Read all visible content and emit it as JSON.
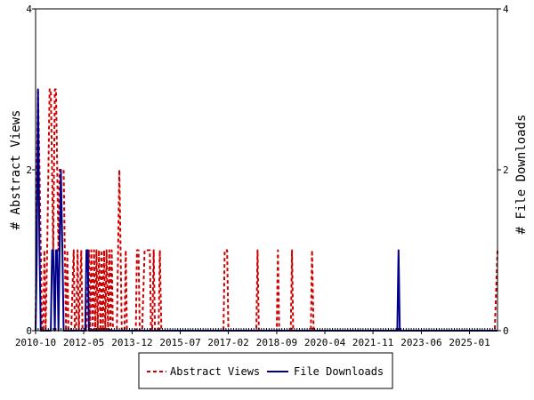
{
  "chart_data": {
    "type": "line",
    "y_left_label": "# Abstract Views",
    "y_right_label": "# File Downloads",
    "ylim": [
      0,
      4
    ],
    "y_ticks": [
      "0",
      "2",
      "4"
    ],
    "y_right_ticks": [
      "0",
      "2",
      "4"
    ],
    "x_range": [
      2010.75,
      2025.92
    ],
    "x_ticks": [
      {
        "x": 2010.75,
        "label": "2010-10"
      },
      {
        "x": 2012.33,
        "label": "2012-05"
      },
      {
        "x": 2013.92,
        "label": "2013-12"
      },
      {
        "x": 2015.5,
        "label": "2015-07"
      },
      {
        "x": 2017.08,
        "label": "2017-02"
      },
      {
        "x": 2018.67,
        "label": "2018-09"
      },
      {
        "x": 2020.25,
        "label": "2020-04"
      },
      {
        "x": 2021.83,
        "label": "2021-11"
      },
      {
        "x": 2023.42,
        "label": "2023-06"
      },
      {
        "x": 2025.0,
        "label": "2025-01"
      }
    ],
    "grid": false,
    "legend_placement": "bottom-center",
    "series": [
      {
        "name": "Abstract Views",
        "color": "#cc0000",
        "style": "dashed",
        "values": [
          [
            2010.75,
            0
          ],
          [
            2010.79,
            2
          ],
          [
            2010.83,
            3
          ],
          [
            2010.88,
            2
          ],
          [
            2010.92,
            1
          ],
          [
            2010.96,
            0
          ],
          [
            2011.0,
            0
          ],
          [
            2011.04,
            1
          ],
          [
            2011.08,
            0
          ],
          [
            2011.13,
            1
          ],
          [
            2011.17,
            2
          ],
          [
            2011.21,
            3
          ],
          [
            2011.25,
            3
          ],
          [
            2011.29,
            2
          ],
          [
            2011.33,
            1
          ],
          [
            2011.38,
            3
          ],
          [
            2011.42,
            3
          ],
          [
            2011.46,
            2
          ],
          [
            2011.5,
            1
          ],
          [
            2011.54,
            2
          ],
          [
            2011.58,
            2
          ],
          [
            2011.63,
            2
          ],
          [
            2011.67,
            2
          ],
          [
            2011.71,
            1
          ],
          [
            2011.75,
            0
          ],
          [
            2011.79,
            1
          ],
          [
            2011.83,
            0
          ],
          [
            2011.88,
            0
          ],
          [
            2011.92,
            0
          ],
          [
            2012.0,
            1
          ],
          [
            2012.04,
            0
          ],
          [
            2012.08,
            0
          ],
          [
            2012.13,
            1
          ],
          [
            2012.17,
            0
          ],
          [
            2012.25,
            1
          ],
          [
            2012.29,
            0
          ],
          [
            2012.33,
            0
          ],
          [
            2012.42,
            0
          ],
          [
            2012.5,
            1
          ],
          [
            2012.54,
            0
          ],
          [
            2012.58,
            1
          ],
          [
            2012.63,
            0
          ],
          [
            2012.67,
            1
          ],
          [
            2012.71,
            0
          ],
          [
            2012.75,
            1
          ],
          [
            2012.79,
            0
          ],
          [
            2012.83,
            1
          ],
          [
            2012.88,
            0
          ],
          [
            2012.92,
            1
          ],
          [
            2012.96,
            0
          ],
          [
            2013.0,
            1
          ],
          [
            2013.04,
            0
          ],
          [
            2013.08,
            1
          ],
          [
            2013.13,
            0
          ],
          [
            2013.17,
            1
          ],
          [
            2013.21,
            0
          ],
          [
            2013.25,
            1
          ],
          [
            2013.29,
            0
          ],
          [
            2013.33,
            0
          ],
          [
            2013.42,
            0
          ],
          [
            2013.46,
            1
          ],
          [
            2013.5,
            2
          ],
          [
            2013.54,
            1
          ],
          [
            2013.58,
            0
          ],
          [
            2013.67,
            0
          ],
          [
            2013.71,
            1
          ],
          [
            2013.75,
            0
          ],
          [
            2013.83,
            0
          ],
          [
            2014.04,
            0
          ],
          [
            2014.08,
            1
          ],
          [
            2014.13,
            1
          ],
          [
            2014.17,
            0
          ],
          [
            2014.25,
            0
          ],
          [
            2014.33,
            1
          ],
          [
            2014.42,
            1
          ],
          [
            2014.5,
            1
          ],
          [
            2014.54,
            0
          ],
          [
            2014.58,
            0
          ],
          [
            2014.63,
            1
          ],
          [
            2014.67,
            0
          ],
          [
            2014.79,
            0
          ],
          [
            2014.83,
            1
          ],
          [
            2014.88,
            0
          ],
          [
            2015.0,
            0
          ],
          [
            2016.92,
            0
          ],
          [
            2016.96,
            1
          ],
          [
            2017.0,
            1
          ],
          [
            2017.04,
            1
          ],
          [
            2017.08,
            0
          ],
          [
            2018.0,
            0
          ],
          [
            2018.04,
            1
          ],
          [
            2018.08,
            0
          ],
          [
            2018.67,
            0
          ],
          [
            2018.71,
            1
          ],
          [
            2018.75,
            0
          ],
          [
            2019.13,
            0
          ],
          [
            2019.17,
            1
          ],
          [
            2019.21,
            0
          ],
          [
            2019.79,
            0
          ],
          [
            2019.83,
            1
          ],
          [
            2019.88,
            0
          ],
          [
            2025.83,
            0
          ],
          [
            2025.92,
            1
          ]
        ]
      },
      {
        "name": "File Downloads",
        "color": "#00008b",
        "style": "solid",
        "values": [
          [
            2010.75,
            0
          ],
          [
            2010.79,
            1
          ],
          [
            2010.83,
            3
          ],
          [
            2010.88,
            1
          ],
          [
            2010.92,
            0
          ],
          [
            2011.25,
            0
          ],
          [
            2011.29,
            1
          ],
          [
            2011.33,
            1
          ],
          [
            2011.38,
            0
          ],
          [
            2011.42,
            1
          ],
          [
            2011.46,
            1
          ],
          [
            2011.5,
            0
          ],
          [
            2011.54,
            1
          ],
          [
            2011.58,
            2
          ],
          [
            2011.63,
            1
          ],
          [
            2011.67,
            0
          ],
          [
            2012.38,
            0
          ],
          [
            2012.42,
            1
          ],
          [
            2012.46,
            1
          ],
          [
            2012.5,
            0
          ],
          [
            2022.63,
            0
          ],
          [
            2022.67,
            1
          ],
          [
            2022.71,
            0
          ],
          [
            2025.92,
            0
          ]
        ]
      }
    ]
  }
}
